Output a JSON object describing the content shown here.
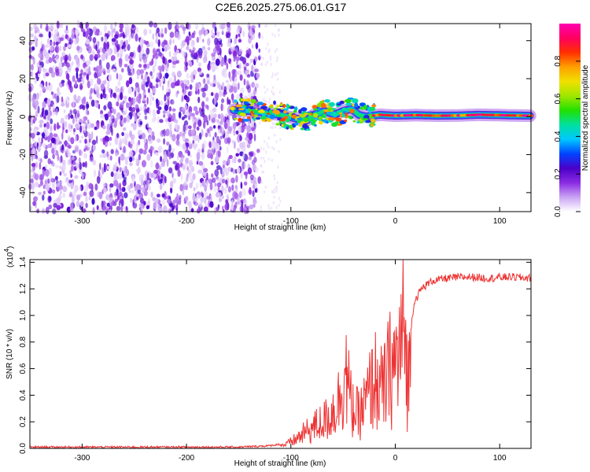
{
  "title": "C2E6.2025.275.06.01.G17",
  "chart_data": [
    {
      "type": "heatmap",
      "title": "",
      "xlabel": "Height of straight line (km)",
      "ylabel": "Frequency (Hz)",
      "xlim": [
        -350,
        130
      ],
      "ylim": [
        -50,
        49
      ],
      "xticks": [
        -300,
        -200,
        -100,
        0,
        100
      ],
      "yticks": [
        -40,
        -20,
        0,
        20,
        40
      ],
      "xtick_labels": [
        "-300",
        "-200",
        "-100",
        "0",
        "100"
      ],
      "ytick_labels": [
        "-40",
        "-20",
        "0",
        "20",
        "40"
      ],
      "noise_region": [
        -350,
        -130
      ],
      "ridge": [
        {
          "h": -155,
          "f": 3.5
        },
        {
          "h": -140,
          "f": 3
        },
        {
          "h": -125,
          "f": 2
        },
        {
          "h": -110,
          "f": 1
        },
        {
          "h": -95,
          "f": -1
        },
        {
          "h": -85,
          "f": -2
        },
        {
          "h": -78,
          "f": 1
        },
        {
          "h": -68,
          "f": 3
        },
        {
          "h": -58,
          "f": 1
        },
        {
          "h": -50,
          "f": 3
        },
        {
          "h": -42,
          "f": 4
        },
        {
          "h": -35,
          "f": 1
        },
        {
          "h": -28,
          "f": 0
        },
        {
          "h": -15,
          "f": 1
        },
        {
          "h": 0,
          "f": 0.5
        },
        {
          "h": 20,
          "f": 0.8
        },
        {
          "h": 40,
          "f": 0.5
        },
        {
          "h": 60,
          "f": 0.6
        },
        {
          "h": 80,
          "f": 1
        },
        {
          "h": 100,
          "f": 0.8
        },
        {
          "h": 115,
          "f": 0.6
        },
        {
          "h": 130,
          "f": 0.5
        }
      ],
      "colorbar": {
        "label": "Normalized spectral amplitude",
        "range": [
          0,
          1
        ],
        "ticks": [
          0.0,
          0.2,
          0.4,
          0.6,
          0.8
        ],
        "tick_labels": [
          "0.0",
          "0.2",
          "0.4",
          "0.6",
          "0.8"
        ],
        "stops": [
          "#ffffff",
          "#c9a3f3",
          "#8a2be2",
          "#4b00c8",
          "#0044ff",
          "#00c8ff",
          "#00e0a0",
          "#22e000",
          "#a0e600",
          "#f0e000",
          "#ffa000",
          "#ff3000",
          "#ff0060",
          "#ff00b0"
        ]
      }
    },
    {
      "type": "line",
      "title": "",
      "xlabel": "Height of straight line (km)",
      "ylabel": "SNR (10 * v/v)",
      "scale_label": "(x10",
      "scale_exp": "4",
      "scale_close": ")",
      "xlim": [
        -350,
        130
      ],
      "ylim": [
        0,
        1.42
      ],
      "xticks": [
        -300,
        -200,
        -100,
        0,
        100
      ],
      "yticks": [
        0.0,
        0.2,
        0.4,
        0.6,
        0.8,
        1.0,
        1.2,
        1.4
      ],
      "xtick_labels": [
        "-300",
        "-200",
        "-100",
        "0",
        "100"
      ],
      "ytick_labels": [
        "0.0",
        "0.2",
        "0.4",
        "0.6",
        "0.8",
        "1.0",
        "1.2",
        "1.4"
      ],
      "series": [
        {
          "name": "SNR",
          "color": "#ee3333",
          "x": [
            -350,
            -300,
            -250,
            -200,
            -150,
            -120,
            -105,
            -95,
            -85,
            -75,
            -65,
            -55,
            -48,
            -42,
            -35,
            -28,
            -20,
            -12,
            -5,
            0,
            5,
            8,
            12,
            18,
            25,
            35,
            50,
            70,
            90,
            110,
            130
          ],
          "y": [
            0.01,
            0.01,
            0.01,
            0.01,
            0.01,
            0.02,
            0.04,
            0.1,
            0.18,
            0.25,
            0.32,
            0.48,
            0.85,
            0.45,
            0.35,
            0.5,
            0.75,
            0.6,
            0.85,
            0.9,
            1.05,
            1.35,
            0.7,
            1.1,
            1.2,
            1.26,
            1.28,
            1.29,
            1.28,
            1.29,
            1.28
          ]
        }
      ]
    }
  ]
}
